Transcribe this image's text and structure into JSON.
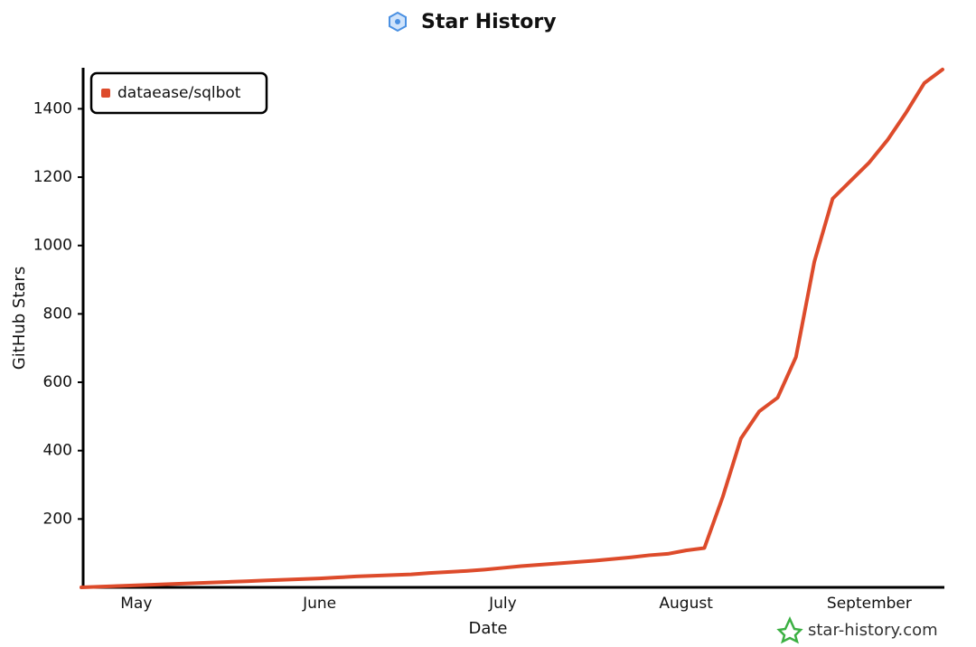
{
  "chart_data": {
    "type": "line",
    "title": "Star History",
    "x_label": "Date",
    "y_label": "GitHub Stars",
    "watermark": "star-history.com",
    "legend_position": "top-left",
    "categories": [
      null,
      null,
      null,
      "May",
      null,
      null,
      null,
      null,
      null,
      null,
      null,
      null,
      null,
      "June",
      null,
      null,
      null,
      null,
      null,
      null,
      null,
      null,
      null,
      "July",
      null,
      null,
      null,
      null,
      null,
      null,
      null,
      null,
      null,
      "August",
      null,
      null,
      null,
      null,
      null,
      null,
      null,
      null,
      null,
      "September",
      null,
      null,
      null,
      null
    ],
    "series": [
      {
        "name": "dataease/sqlbot",
        "color": "#dd4b2b",
        "values": [
          0,
          2,
          4,
          6,
          8,
          10,
          12,
          14,
          16,
          18,
          20,
          22,
          24,
          26,
          29,
          32,
          34,
          36,
          38,
          42,
          45,
          48,
          52,
          57,
          62,
          66,
          70,
          74,
          78,
          83,
          88,
          94,
          98,
          108,
          115,
          264,
          436,
          515,
          555,
          674,
          952,
          1137,
          1190,
          1243,
          1309,
          1388,
          1475,
          1515
        ]
      }
    ],
    "ylim": [
      0,
      1520
    ],
    "yticks": [
      200,
      400,
      600,
      800,
      1000,
      1200,
      1400
    ]
  }
}
